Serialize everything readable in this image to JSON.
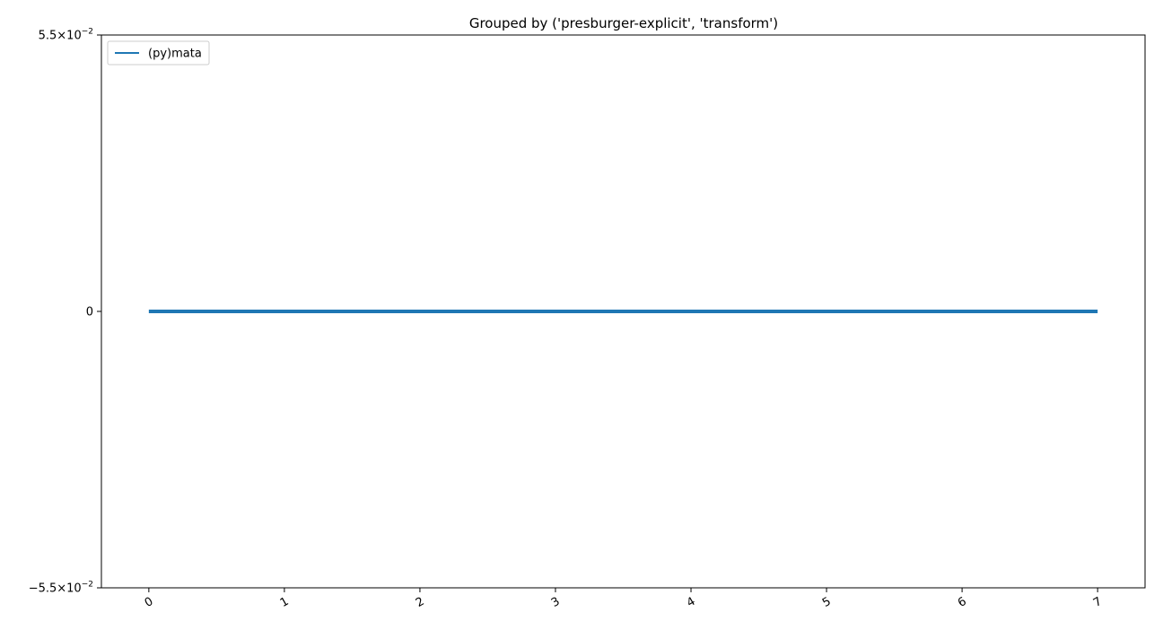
{
  "chart_data": {
    "type": "line",
    "title": "Grouped by ('presburger-explicit', 'transform')",
    "xlabel": "",
    "ylabel": "",
    "x": [
      0,
      1,
      2,
      3,
      4,
      5,
      6,
      7
    ],
    "x_tick_labels": [
      "0",
      "1",
      "2",
      "3",
      "4",
      "5",
      "6",
      "7"
    ],
    "y_tick_labels": [
      {
        "value": 0.055,
        "mantissa": "5.5",
        "exponent": "−2",
        "prefix": ""
      },
      {
        "value": 0,
        "mantissa": "0",
        "exponent": "",
        "prefix": ""
      },
      {
        "value": -0.055,
        "mantissa": "5.5",
        "exponent": "−2",
        "prefix": "−"
      }
    ],
    "xlim": [
      -0.35,
      7.35
    ],
    "ylim": [
      -0.055,
      0.055
    ],
    "y_scale": "symlog",
    "grid": false,
    "legend_position": "top-left",
    "series": [
      {
        "name": "(py)mata",
        "color": "#1f77b4",
        "values": [
          0,
          0,
          0,
          0,
          0,
          0,
          0,
          0
        ]
      }
    ]
  }
}
